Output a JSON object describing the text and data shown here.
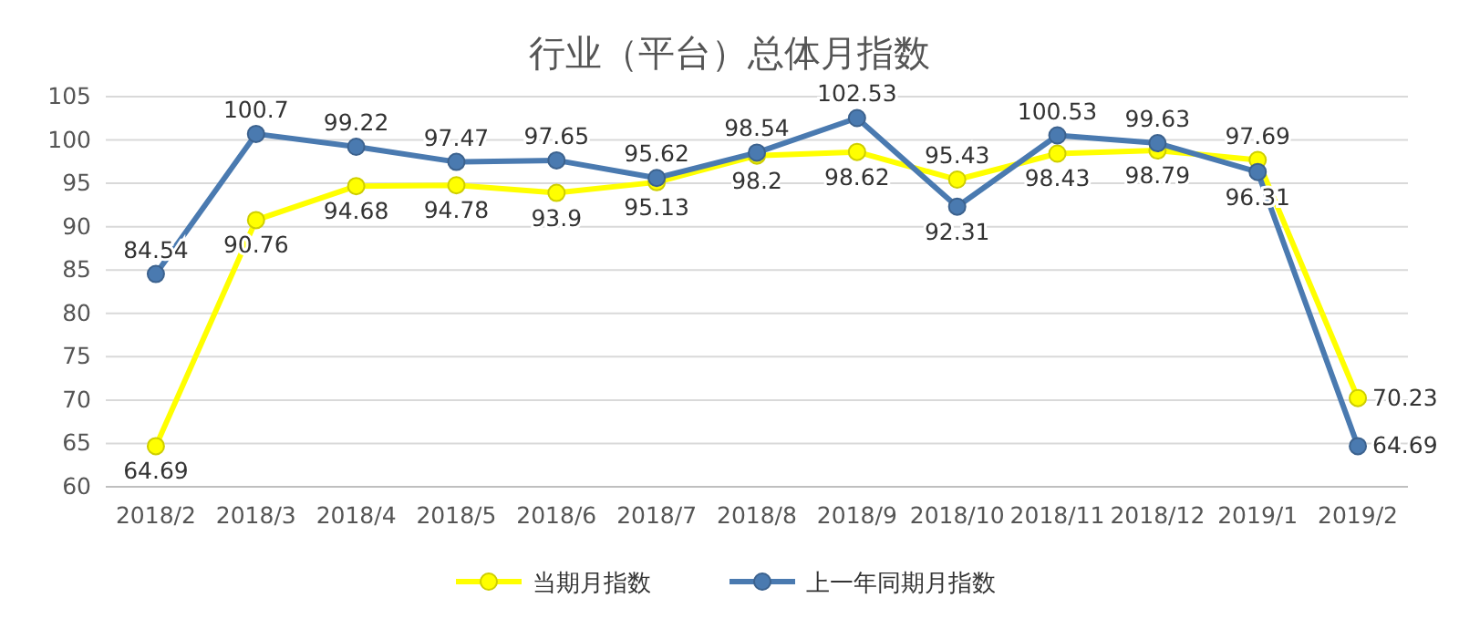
{
  "chart_data": {
    "type": "line",
    "title": "行业（平台）总体月指数",
    "categories": [
      "2018/2",
      "2018/3",
      "2018/4",
      "2018/5",
      "2018/6",
      "2018/7",
      "2018/8",
      "2018/9",
      "2018/10",
      "2018/11",
      "2018/12",
      "2019/1",
      "2019/2"
    ],
    "series": [
      {
        "name": "当期月指数",
        "color": "#ffff00",
        "values": [
          64.69,
          90.76,
          94.68,
          94.78,
          93.9,
          95.13,
          98.2,
          98.62,
          95.43,
          98.43,
          98.79,
          97.69,
          70.23
        ]
      },
      {
        "name": "上一年同期月指数",
        "color": "#4a7ab0",
        "values": [
          84.54,
          100.7,
          99.22,
          97.47,
          97.65,
          95.62,
          98.54,
          102.53,
          92.31,
          100.53,
          99.63,
          96.31,
          64.69
        ]
      }
    ],
    "ylim": [
      60,
      105
    ],
    "yticks": [
      60,
      65,
      70,
      75,
      80,
      85,
      90,
      95,
      100,
      105
    ],
    "grid": "y",
    "legend": "bottom",
    "marker": "circle",
    "line_style": "solid",
    "data_labels": true
  }
}
